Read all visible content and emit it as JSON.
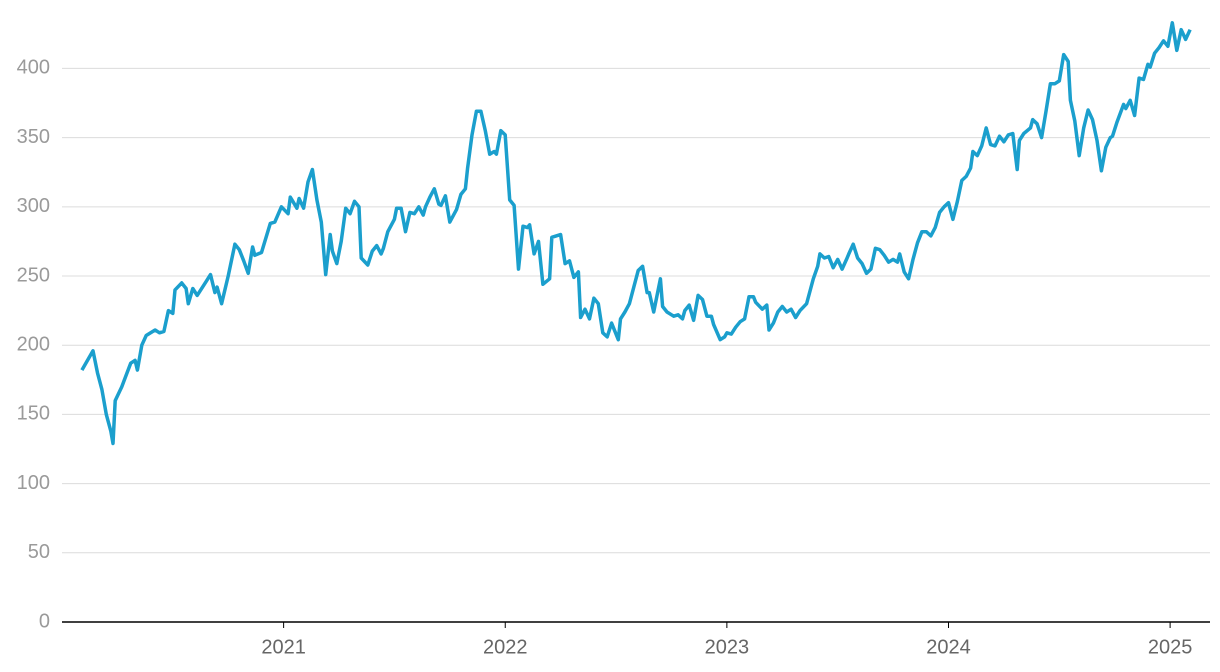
{
  "chart_data": {
    "type": "line",
    "x": [
      2020.09,
      2020.14,
      2020.16,
      2020.18,
      2020.2,
      2020.22,
      2020.23,
      2020.24,
      2020.27,
      2020.31,
      2020.33,
      2020.34,
      2020.36,
      2020.38,
      2020.42,
      2020.44,
      2020.46,
      2020.48,
      2020.5,
      2020.51,
      2020.54,
      2020.56,
      2020.57,
      2020.59,
      2020.61,
      2020.65,
      2020.67,
      2020.69,
      2020.7,
      2020.72,
      2020.75,
      2020.78,
      2020.8,
      2020.82,
      2020.84,
      2020.86,
      2020.87,
      2020.9,
      2020.94,
      2020.96,
      2020.99,
      2021.02,
      2021.03,
      2021.06,
      2021.07,
      2021.09,
      2021.11,
      2021.13,
      2021.15,
      2021.17,
      2021.19,
      2021.21,
      2021.22,
      2021.24,
      2021.26,
      2021.28,
      2021.3,
      2021.32,
      2021.34,
      2021.35,
      2021.38,
      2021.4,
      2021.42,
      2021.44,
      2021.45,
      2021.47,
      2021.5,
      2021.51,
      2021.53,
      2021.55,
      2021.57,
      2021.59,
      2021.61,
      2021.63,
      2021.64,
      2021.66,
      2021.68,
      2021.7,
      2021.71,
      2021.73,
      2021.75,
      2021.78,
      2021.8,
      2021.82,
      2021.83,
      2021.85,
      2021.87,
      2021.89,
      2021.91,
      2021.93,
      2021.95,
      2021.96,
      2021.98,
      2022.0,
      2022.02,
      2022.04,
      2022.06,
      2022.08,
      2022.1,
      2022.11,
      2022.13,
      2022.15,
      2022.17,
      2022.2,
      2022.21,
      2022.23,
      2022.25,
      2022.27,
      2022.29,
      2022.31,
      2022.33,
      2022.34,
      2022.36,
      2022.38,
      2022.4,
      2022.42,
      2022.44,
      2022.46,
      2022.48,
      2022.51,
      2022.52,
      2022.54,
      2022.56,
      2022.58,
      2022.6,
      2022.62,
      2022.64,
      2022.65,
      2022.67,
      2022.7,
      2022.71,
      2022.73,
      2022.76,
      2022.78,
      2022.8,
      2022.81,
      2022.83,
      2022.85,
      2022.87,
      2022.89,
      2022.91,
      2022.93,
      2022.94,
      2022.97,
      2022.99,
      2023.0,
      2023.02,
      2023.04,
      2023.06,
      2023.08,
      2023.1,
      2023.12,
      2023.13,
      2023.16,
      2023.18,
      2023.19,
      2023.21,
      2023.23,
      2023.25,
      2023.27,
      2023.29,
      2023.31,
      2023.33,
      2023.36,
      2023.39,
      2023.41,
      2023.42,
      2023.44,
      2023.46,
      2023.48,
      2023.5,
      2023.52,
      2023.54,
      2023.55,
      2023.57,
      2023.59,
      2023.61,
      2023.63,
      2023.65,
      2023.67,
      2023.69,
      2023.71,
      2023.73,
      2023.75,
      2023.77,
      2023.78,
      2023.8,
      2023.82,
      2023.84,
      2023.86,
      2023.88,
      2023.9,
      2023.92,
      2023.94,
      2023.96,
      2023.98,
      2024.0,
      2024.02,
      2024.04,
      2024.06,
      2024.08,
      2024.1,
      2024.11,
      2024.13,
      2024.15,
      2024.17,
      2024.19,
      2024.21,
      2024.23,
      2024.25,
      2024.27,
      2024.29,
      2024.31,
      2024.32,
      2024.34,
      2024.37,
      2024.38,
      2024.4,
      2024.42,
      2024.44,
      2024.46,
      2024.48,
      2024.5,
      2024.52,
      2024.54,
      2024.55,
      2024.57,
      2024.59,
      2024.61,
      2024.63,
      2024.65,
      2024.67,
      2024.69,
      2024.71,
      2024.73,
      2024.74,
      2024.76,
      2024.79,
      2024.8,
      2024.82,
      2024.84,
      2024.86,
      2024.88,
      2024.9,
      2024.91,
      2024.93,
      2024.95,
      2024.97,
      2024.99,
      2025.01,
      2025.03,
      2025.05,
      2025.07,
      2025.09
    ],
    "series": [
      {
        "color": "#1b9fcd",
        "values": [
          182,
          196,
          180,
          168,
          150,
          138,
          129,
          160,
          170,
          187,
          189,
          182,
          200,
          207,
          211,
          209,
          210,
          225,
          223,
          240,
          245,
          241,
          230,
          241,
          236,
          246,
          251,
          238,
          242,
          230,
          250,
          273,
          269,
          261,
          252,
          271,
          265,
          267,
          288,
          289,
          300,
          295,
          307,
          299,
          306,
          299,
          318,
          327,
          305,
          289,
          251,
          280,
          268,
          259,
          275,
          299,
          295,
          304,
          300,
          263,
          258,
          268,
          272,
          266,
          270,
          282,
          291,
          299,
          299,
          282,
          296,
          295,
          300,
          294,
          300,
          307,
          313,
          302,
          301,
          308,
          289,
          298,
          309,
          313,
          328,
          352,
          369,
          369,
          355,
          338,
          340,
          338,
          355,
          352,
          305,
          301,
          255,
          286,
          285,
          287,
          266,
          275,
          244,
          248,
          278,
          279,
          280,
          259,
          261,
          249,
          253,
          220,
          226,
          219,
          234,
          230,
          209,
          206,
          216,
          204,
          219,
          224,
          230,
          242,
          254,
          257,
          238,
          238,
          224,
          248,
          228,
          224,
          221,
          222,
          219,
          225,
          229,
          218,
          236,
          233,
          221,
          221,
          215,
          204,
          206,
          209,
          208,
          213,
          217,
          219,
          235,
          235,
          231,
          226,
          229,
          211,
          216,
          224,
          228,
          224,
          226,
          220,
          225,
          230,
          248,
          257,
          266,
          263,
          264,
          256,
          262,
          255,
          262,
          266,
          273,
          263,
          259,
          252,
          255,
          270,
          269,
          265,
          260,
          262,
          260,
          266,
          253,
          248,
          262,
          274,
          282,
          282,
          279,
          285,
          296,
          300,
          303,
          291,
          304,
          319,
          322,
          328,
          340,
          337,
          344,
          357,
          345,
          344,
          351,
          347,
          352,
          353,
          327,
          348,
          353,
          357,
          363,
          360,
          350,
          369,
          389,
          389,
          391,
          410,
          405,
          377,
          362,
          337,
          357,
          370,
          363,
          348,
          326,
          343,
          350,
          351,
          361,
          374,
          371,
          377,
          366,
          393,
          392,
          403,
          401,
          411,
          415,
          420,
          416,
          433,
          413,
          428,
          421,
          428
        ]
      }
    ],
    "xlim": [
      2020,
      2025.18
    ],
    "xticks": [
      2021,
      2022,
      2023,
      2024,
      2025
    ],
    "ylim": [
      0,
      435
    ],
    "yticks": [
      0,
      50,
      100,
      150,
      200,
      250,
      300,
      350,
      400
    ],
    "grid": true
  }
}
